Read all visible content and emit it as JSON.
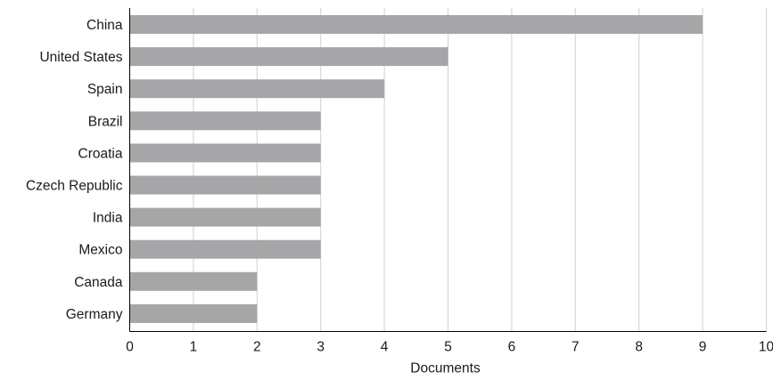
{
  "chart_data": {
    "type": "bar",
    "orientation": "horizontal",
    "categories": [
      "China",
      "United States",
      "Spain",
      "Brazil",
      "Croatia",
      "Czech Republic",
      "India",
      "Mexico",
      "Canada",
      "Germany"
    ],
    "values": [
      9,
      5,
      4,
      3,
      3,
      3,
      3,
      3,
      2,
      2
    ],
    "title": "",
    "xlabel": "Documents",
    "ylabel": "",
    "xlim": [
      0,
      10
    ],
    "x_ticks": [
      "0",
      "1",
      "2",
      "3",
      "4",
      "5",
      "6",
      "7",
      "8",
      "9",
      "10"
    ],
    "grid": "vertical",
    "bar_color": "#a6a6a8",
    "legend": "none"
  }
}
